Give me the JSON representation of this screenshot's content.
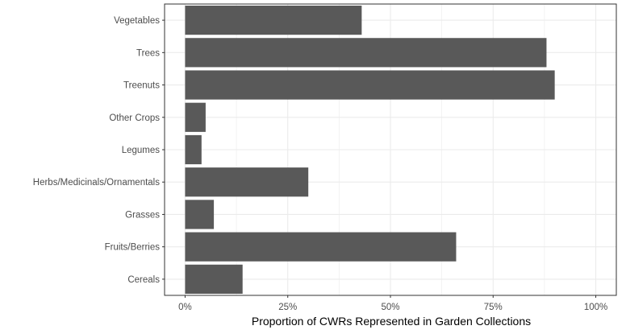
{
  "chart_data": {
    "type": "bar",
    "orientation": "horizontal",
    "categories": [
      "Cereals",
      "Fruits/Berries",
      "Grasses",
      "Herbs/Medicinals/Ornamentals",
      "Legumes",
      "Other Crops",
      "Treenuts",
      "Trees",
      "Vegetables"
    ],
    "values": [
      0.14,
      0.66,
      0.07,
      0.3,
      0.04,
      0.05,
      0.9,
      0.88,
      0.43
    ],
    "xlabel": "Proportion of CWRs Represented in Garden Collections",
    "ylabel": "",
    "x_ticks": [
      "0%",
      "25%",
      "50%",
      "75%",
      "100%"
    ],
    "xlim": [
      -0.05,
      1.05
    ],
    "grid": true,
    "bar_color": "#595959",
    "grid_color": "#ebebeb",
    "border_color": "#333333"
  }
}
